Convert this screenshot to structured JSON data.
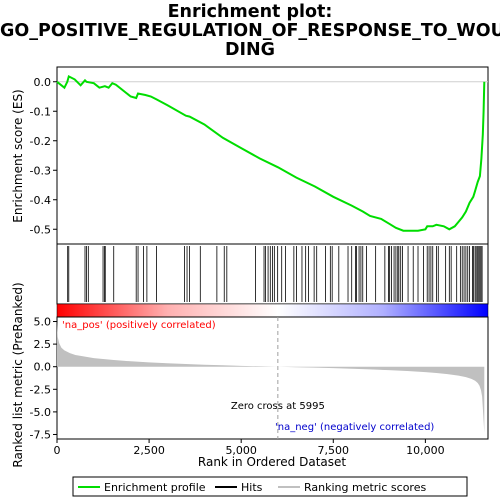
{
  "title": {
    "line1": "Enrichment plot:",
    "line2": "GO_POSITIVE_REGULATION_OF_RESPONSE_TO_WOUN",
    "line3": "DING"
  },
  "colors": {
    "enrichment_line": "#00dd00",
    "hits": "#000000",
    "metric_fill": "#c0c0c0",
    "zero_cross_line": "#a0a0a0",
    "pos_label": "#ff0000",
    "neg_label": "#0000cc",
    "heat_pos": "#ff0000",
    "heat_mid": "#ffffff",
    "heat_neg": "#0000ff"
  },
  "chart_data": [
    {
      "type": "line",
      "name": "enrichment-plot",
      "ylabel": "Enrichment score (ES)",
      "xlim": [
        0,
        11700
      ],
      "ylim": [
        -0.55,
        0.05
      ],
      "yticks": [
        0.0,
        -0.1,
        -0.2,
        -0.3,
        -0.4,
        -0.5
      ],
      "ytick_labels": [
        "0.0",
        "-0.1",
        "-0.2",
        "-0.3",
        "-0.4",
        "-0.5"
      ],
      "grid": false,
      "series": [
        {
          "name": "Enrichment profile",
          "x": [
            0,
            200,
            280,
            320,
            480,
            640,
            760,
            800,
            1000,
            1150,
            1300,
            1400,
            1500,
            1600,
            2000,
            2150,
            2200,
            2400,
            2550,
            2700,
            3000,
            3500,
            3600,
            4000,
            4500,
            5000,
            5500,
            6000,
            6500,
            7000,
            7500,
            8000,
            8300,
            8500,
            8800,
            9000,
            9200,
            9400,
            9600,
            9800,
            10000,
            10050,
            10200,
            10300,
            10500,
            10650,
            10800,
            10900,
            11000,
            11100,
            11200,
            11300,
            11350,
            11420,
            11480,
            11520,
            11560,
            11580,
            11600
          ],
          "y": [
            0.0,
            -0.02,
            0.0,
            0.018,
            0.008,
            -0.012,
            0.005,
            0.0,
            -0.005,
            -0.02,
            -0.015,
            -0.02,
            -0.005,
            -0.01,
            -0.05,
            -0.055,
            -0.04,
            -0.045,
            -0.05,
            -0.06,
            -0.08,
            -0.115,
            -0.118,
            -0.145,
            -0.19,
            -0.225,
            -0.26,
            -0.29,
            -0.325,
            -0.355,
            -0.39,
            -0.42,
            -0.44,
            -0.455,
            -0.465,
            -0.48,
            -0.495,
            -0.505,
            -0.505,
            -0.505,
            -0.5,
            -0.49,
            -0.49,
            -0.485,
            -0.49,
            -0.5,
            -0.49,
            -0.475,
            -0.46,
            -0.44,
            -0.41,
            -0.39,
            -0.37,
            -0.34,
            -0.32,
            -0.26,
            -0.18,
            -0.1,
            0.0
          ]
        }
      ]
    },
    {
      "type": "scatter",
      "name": "hits",
      "series": [
        {
          "name": "Hits",
          "positions": [
            290,
            320,
            760,
            800,
            850,
            1250,
            1290,
            1310,
            1540,
            2150,
            2200,
            2350,
            2440,
            2700,
            3460,
            3530,
            3600,
            3890,
            4340,
            4540,
            4610,
            5390,
            5620,
            5660,
            5730,
            5790,
            5850,
            5900,
            5990,
            6100,
            6200,
            6430,
            6500,
            6650,
            6750,
            6830,
            6980,
            7050,
            7290,
            7420,
            7470,
            7650,
            7900,
            8000,
            8100,
            8130,
            8200,
            8250,
            8300,
            8400,
            8650,
            8900,
            9000,
            9030,
            9080,
            9150,
            9200,
            9250,
            9280,
            9330,
            9380,
            9530,
            9670,
            9800,
            9950,
            10050,
            10100,
            10150,
            10200,
            10300,
            10350,
            10550,
            10650,
            10700,
            10850,
            10950,
            11000,
            11050,
            11100,
            11150,
            11200,
            11280,
            11310,
            11350,
            11380,
            11420,
            11450,
            11480,
            11510,
            11540
          ]
        }
      ]
    },
    {
      "type": "area",
      "name": "ranked-list-metric",
      "ylabel": "Ranked list metric (PreRanked)",
      "xlabel": "Rank in Ordered Dataset",
      "xlim": [
        0,
        11700
      ],
      "ylim": [
        -8.0,
        5.5
      ],
      "xticks": [
        0,
        2500,
        5000,
        7500,
        10000
      ],
      "xtick_labels": [
        "0",
        "2,500",
        "5,000",
        "7,500",
        "10,000"
      ],
      "yticks": [
        5.0,
        2.5,
        0.0,
        -2.5,
        -5.0,
        -7.5
      ],
      "ytick_labels": [
        "5.0",
        "2.5",
        "0.0",
        "-2.5",
        "-5.0",
        "-7.5"
      ],
      "grid": false,
      "zero_cross": 5995,
      "zero_cross_label": "Zero cross at 5995",
      "pos_label": "'na_pos' (positively correlated)",
      "neg_label": "'na_neg' (negatively correlated)",
      "series": [
        {
          "name": "Ranking metric scores",
          "x": [
            0,
            20,
            60,
            120,
            200,
            350,
            500,
            700,
            1000,
            1500,
            2000,
            2500,
            3000,
            3500,
            4000,
            4500,
            5000,
            5500,
            5995,
            6500,
            7000,
            7500,
            8000,
            8500,
            9000,
            9500,
            10000,
            10300,
            10600,
            10900,
            11100,
            11250,
            11350,
            11420,
            11470,
            11510,
            11540,
            11560,
            11580,
            11600
          ],
          "y": [
            5.0,
            3.3,
            2.6,
            2.1,
            1.8,
            1.5,
            1.3,
            1.15,
            0.95,
            0.75,
            0.6,
            0.48,
            0.38,
            0.3,
            0.22,
            0.15,
            0.09,
            0.04,
            0.0,
            -0.05,
            -0.1,
            -0.16,
            -0.22,
            -0.3,
            -0.38,
            -0.48,
            -0.6,
            -0.7,
            -0.82,
            -0.98,
            -1.15,
            -1.35,
            -1.55,
            -1.8,
            -2.1,
            -2.6,
            -3.3,
            -4.5,
            -6.0,
            -7.3
          ]
        }
      ]
    }
  ],
  "legend": {
    "items": [
      {
        "label": "Enrichment profile",
        "kind": "line",
        "color": "#00dd00"
      },
      {
        "label": "Hits",
        "kind": "line",
        "color": "#000000"
      },
      {
        "label": "Ranking metric scores",
        "kind": "line",
        "color": "#c0c0c0"
      }
    ]
  }
}
